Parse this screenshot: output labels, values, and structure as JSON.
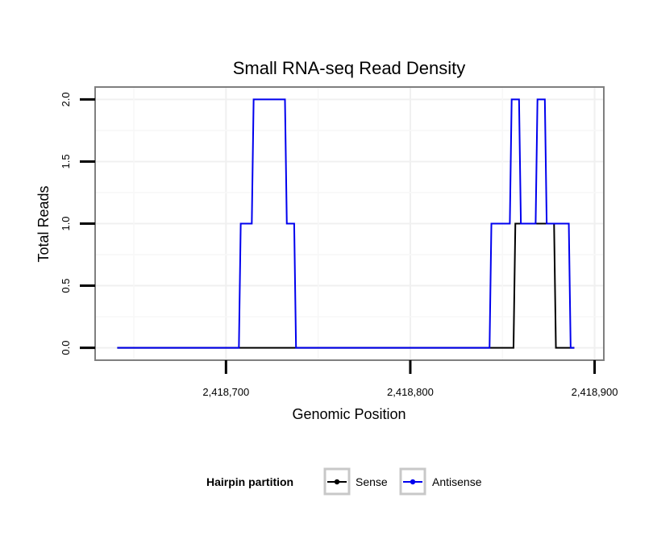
{
  "chart_data": {
    "type": "line",
    "title": "Small RNA-seq Read Density",
    "xlabel": "Genomic Position",
    "ylabel": "Total Reads",
    "xlim": [
      2418629,
      2418905
    ],
    "ylim": [
      -0.1,
      2.1
    ],
    "x_ticks": [
      {
        "value": 2418700,
        "label": "2,418,700"
      },
      {
        "value": 2418800,
        "label": "2,418,800"
      },
      {
        "value": 2418900,
        "label": "2,418,900"
      }
    ],
    "y_ticks": [
      {
        "value": 0.0,
        "label": "0.0"
      },
      {
        "value": 0.5,
        "label": "0.5"
      },
      {
        "value": 1.0,
        "label": "1.0"
      },
      {
        "value": 1.5,
        "label": "1.5"
      },
      {
        "value": 2.0,
        "label": "2.0"
      }
    ],
    "grid": true,
    "legend": {
      "title": "Hairpin partition",
      "position": "bottom",
      "entries": [
        "Sense",
        "Antisense"
      ]
    },
    "series": [
      {
        "name": "Sense",
        "color": "#000000",
        "x": [
          2418641,
          2418856,
          2418857,
          2418878,
          2418879,
          2418889
        ],
        "y": [
          0,
          0,
          1,
          1,
          0,
          0
        ]
      },
      {
        "name": "Antisense",
        "color": "#0000ee",
        "x": [
          2418641,
          2418707,
          2418708,
          2418714,
          2418715,
          2418732,
          2418733,
          2418737,
          2418738,
          2418843,
          2418844,
          2418854,
          2418855,
          2418859,
          2418860,
          2418868,
          2418869,
          2418873,
          2418874,
          2418886,
          2418887,
          2418889
        ],
        "y": [
          0,
          0,
          1,
          1,
          2,
          2,
          1,
          1,
          0,
          0,
          1,
          1,
          2,
          2,
          1,
          1,
          2,
          2,
          1,
          1,
          0,
          0
        ]
      }
    ]
  }
}
